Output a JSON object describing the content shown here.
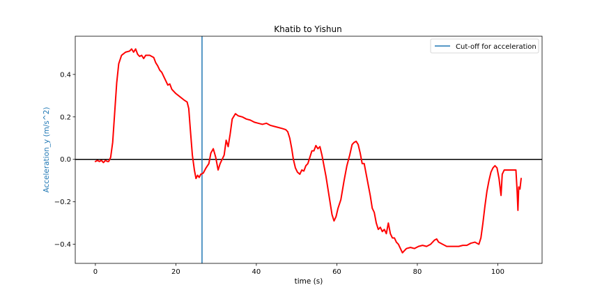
{
  "chart_data": {
    "type": "line",
    "title": "Khatib to Yishun",
    "xlabel": "time (s)",
    "ylabel": "Acceleration_y (m/s^2)",
    "xlim": [
      -5,
      111
    ],
    "ylim": [
      -0.49,
      0.58
    ],
    "xticks": [
      0,
      20,
      40,
      60,
      80,
      100
    ],
    "yticks": [
      -0.4,
      -0.2,
      0.0,
      0.2,
      0.4
    ],
    "xtick_labels": [
      "0",
      "20",
      "40",
      "60",
      "80",
      "100"
    ],
    "ytick_labels": [
      "−0.4",
      "−0.2",
      "0.0",
      "0.2",
      "0.4"
    ],
    "grid": false,
    "legend_position": "top-right",
    "cutoff_x": 26.5,
    "zero_line_y": 0.0,
    "colors": {
      "series": "#ff0000",
      "cutoff": "#1f77b4",
      "zero_line": "#000000",
      "ylabel": "#1f77b4"
    },
    "series": [
      {
        "name": "",
        "points": [
          [
            0,
            -0.01
          ],
          [
            0.5,
            -0.005
          ],
          [
            1,
            -0.01
          ],
          [
            1.5,
            -0.005
          ],
          [
            2,
            -0.015
          ],
          [
            2.5,
            -0.005
          ],
          [
            3,
            -0.01
          ],
          [
            3.3,
            -0.01
          ],
          [
            3.8,
            0.01
          ],
          [
            4.3,
            0.08
          ],
          [
            4.8,
            0.22
          ],
          [
            5.3,
            0.36
          ],
          [
            5.8,
            0.45
          ],
          [
            6.5,
            0.49
          ],
          [
            7.5,
            0.505
          ],
          [
            8.5,
            0.51
          ],
          [
            9,
            0.52
          ],
          [
            9.5,
            0.505
          ],
          [
            10,
            0.52
          ],
          [
            10.5,
            0.495
          ],
          [
            11,
            0.485
          ],
          [
            11.5,
            0.49
          ],
          [
            12,
            0.475
          ],
          [
            12.5,
            0.49
          ],
          [
            13.5,
            0.49
          ],
          [
            14.5,
            0.48
          ],
          [
            15,
            0.455
          ],
          [
            15.5,
            0.44
          ],
          [
            16,
            0.42
          ],
          [
            16.5,
            0.41
          ],
          [
            17,
            0.39
          ],
          [
            17.5,
            0.37
          ],
          [
            18,
            0.35
          ],
          [
            18.5,
            0.355
          ],
          [
            19,
            0.33
          ],
          [
            20,
            0.31
          ],
          [
            21,
            0.295
          ],
          [
            22,
            0.28
          ],
          [
            22.8,
            0.27
          ],
          [
            23.2,
            0.24
          ],
          [
            23.6,
            0.14
          ],
          [
            24.1,
            0.02
          ],
          [
            24.6,
            -0.05
          ],
          [
            25,
            -0.09
          ],
          [
            25.4,
            -0.075
          ],
          [
            25.8,
            -0.085
          ],
          [
            26.2,
            -0.07
          ],
          [
            26.8,
            -0.065
          ],
          [
            27.5,
            -0.04
          ],
          [
            28.2,
            -0.02
          ],
          [
            28.7,
            0.03
          ],
          [
            29.3,
            0.05
          ],
          [
            29.9,
            0.01
          ],
          [
            30.5,
            -0.05
          ],
          [
            31.0,
            -0.02
          ],
          [
            31.5,
            0.0
          ],
          [
            32.0,
            0.02
          ],
          [
            32.5,
            0.09
          ],
          [
            33,
            0.06
          ],
          [
            33.5,
            0.12
          ],
          [
            34,
            0.19
          ],
          [
            34.8,
            0.215
          ],
          [
            35.5,
            0.205
          ],
          [
            36.5,
            0.2
          ],
          [
            37.5,
            0.19
          ],
          [
            38.5,
            0.185
          ],
          [
            39.5,
            0.175
          ],
          [
            40.5,
            0.17
          ],
          [
            41.5,
            0.165
          ],
          [
            42.5,
            0.17
          ],
          [
            43.5,
            0.16
          ],
          [
            44.5,
            0.155
          ],
          [
            45.5,
            0.15
          ],
          [
            46.5,
            0.145
          ],
          [
            47.3,
            0.14
          ],
          [
            47.8,
            0.13
          ],
          [
            48.3,
            0.1
          ],
          [
            48.8,
            0.05
          ],
          [
            49.2,
            0.0
          ],
          [
            49.7,
            -0.04
          ],
          [
            50.2,
            -0.06
          ],
          [
            50.8,
            -0.07
          ],
          [
            51.3,
            -0.05
          ],
          [
            51.8,
            -0.055
          ],
          [
            52.3,
            -0.03
          ],
          [
            52.8,
            -0.02
          ],
          [
            53.3,
            0.01
          ],
          [
            53.8,
            0.04
          ],
          [
            54.3,
            0.04
          ],
          [
            54.8,
            0.065
          ],
          [
            55.3,
            0.05
          ],
          [
            55.8,
            0.06
          ],
          [
            56.3,
            0.02
          ],
          [
            56.8,
            -0.03
          ],
          [
            57.3,
            -0.08
          ],
          [
            57.8,
            -0.14
          ],
          [
            58.3,
            -0.2
          ],
          [
            58.8,
            -0.26
          ],
          [
            59.3,
            -0.29
          ],
          [
            59.8,
            -0.27
          ],
          [
            60.3,
            -0.23
          ],
          [
            61,
            -0.19
          ],
          [
            61.8,
            -0.1
          ],
          [
            62.5,
            -0.03
          ],
          [
            63.2,
            0.02
          ],
          [
            63.8,
            0.07
          ],
          [
            64.3,
            0.08
          ],
          [
            64.8,
            0.085
          ],
          [
            65.3,
            0.07
          ],
          [
            65.8,
            0.03
          ],
          [
            66.3,
            -0.02
          ],
          [
            66.8,
            -0.02
          ],
          [
            67.3,
            -0.07
          ],
          [
            67.8,
            -0.12
          ],
          [
            68.3,
            -0.17
          ],
          [
            68.8,
            -0.23
          ],
          [
            69.3,
            -0.25
          ],
          [
            69.8,
            -0.3
          ],
          [
            70.3,
            -0.33
          ],
          [
            70.8,
            -0.32
          ],
          [
            71.3,
            -0.34
          ],
          [
            71.8,
            -0.33
          ],
          [
            72.3,
            -0.35
          ],
          [
            72.8,
            -0.3
          ],
          [
            73.3,
            -0.35
          ],
          [
            73.8,
            -0.37
          ],
          [
            74.3,
            -0.37
          ],
          [
            74.8,
            -0.39
          ],
          [
            75.3,
            -0.4
          ],
          [
            75.8,
            -0.42
          ],
          [
            76.3,
            -0.44
          ],
          [
            76.8,
            -0.43
          ],
          [
            77.3,
            -0.42
          ],
          [
            78.3,
            -0.415
          ],
          [
            79.3,
            -0.42
          ],
          [
            80.3,
            -0.41
          ],
          [
            81.3,
            -0.405
          ],
          [
            82.3,
            -0.41
          ],
          [
            83.3,
            -0.4
          ],
          [
            84.3,
            -0.38
          ],
          [
            84.8,
            -0.375
          ],
          [
            85.3,
            -0.39
          ],
          [
            86.3,
            -0.4
          ],
          [
            87.3,
            -0.41
          ],
          [
            88.3,
            -0.41
          ],
          [
            89.3,
            -0.41
          ],
          [
            90.3,
            -0.41
          ],
          [
            91.3,
            -0.405
          ],
          [
            92.3,
            -0.405
          ],
          [
            93.3,
            -0.395
          ],
          [
            94.3,
            -0.39
          ],
          [
            95.3,
            -0.4
          ],
          [
            95.8,
            -0.37
          ],
          [
            96.3,
            -0.3
          ],
          [
            96.8,
            -0.22
          ],
          [
            97.3,
            -0.15
          ],
          [
            97.8,
            -0.1
          ],
          [
            98.3,
            -0.06
          ],
          [
            98.8,
            -0.04
          ],
          [
            99.3,
            -0.03
          ],
          [
            99.8,
            -0.04
          ],
          [
            100.3,
            -0.09
          ],
          [
            100.8,
            -0.17
          ],
          [
            101.1,
            -0.07
          ],
          [
            101.6,
            -0.05
          ],
          [
            102.5,
            -0.05
          ],
          [
            103.5,
            -0.05
          ],
          [
            104.5,
            -0.05
          ],
          [
            104.8,
            -0.15
          ],
          [
            105.0,
            -0.24
          ],
          [
            105.2,
            -0.13
          ],
          [
            105.5,
            -0.14
          ],
          [
            105.8,
            -0.09
          ]
        ]
      }
    ],
    "legend_entries": [
      {
        "label": "Cut-off for acceleration",
        "color": "#1f77b4"
      }
    ]
  }
}
